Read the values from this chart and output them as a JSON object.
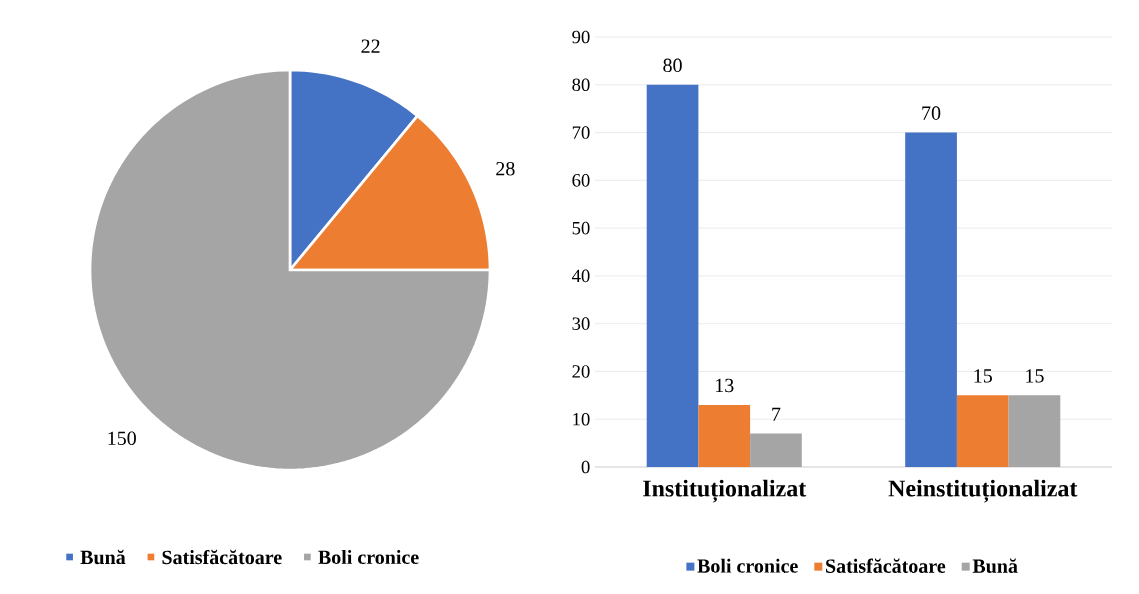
{
  "chart_data": [
    {
      "type": "pie",
      "categories": [
        "Bună",
        "Satisfăcătoare",
        "Boli cronice"
      ],
      "values": [
        22,
        28,
        150
      ],
      "colors": [
        "#4472c4",
        "#ed7d31",
        "#a5a5a5"
      ],
      "data_labels": true,
      "legend": "bottom"
    },
    {
      "type": "bar",
      "categories": [
        "Instituționalizat",
        "Neinstituționalizat"
      ],
      "series": [
        {
          "name": "Boli cronice",
          "color": "#4472c4",
          "values": [
            80,
            70
          ]
        },
        {
          "name": "Satisfăcătoare",
          "color": "#ed7d31",
          "values": [
            13,
            15
          ]
        },
        {
          "name": "Bună",
          "color": "#a5a5a5",
          "values": [
            7,
            15
          ]
        }
      ],
      "ylim": [
        0,
        90
      ],
      "yticks": [
        0,
        10,
        20,
        30,
        40,
        50,
        60,
        70,
        80,
        90
      ],
      "grid": "y",
      "legend": "bottom",
      "data_labels": true
    }
  ]
}
